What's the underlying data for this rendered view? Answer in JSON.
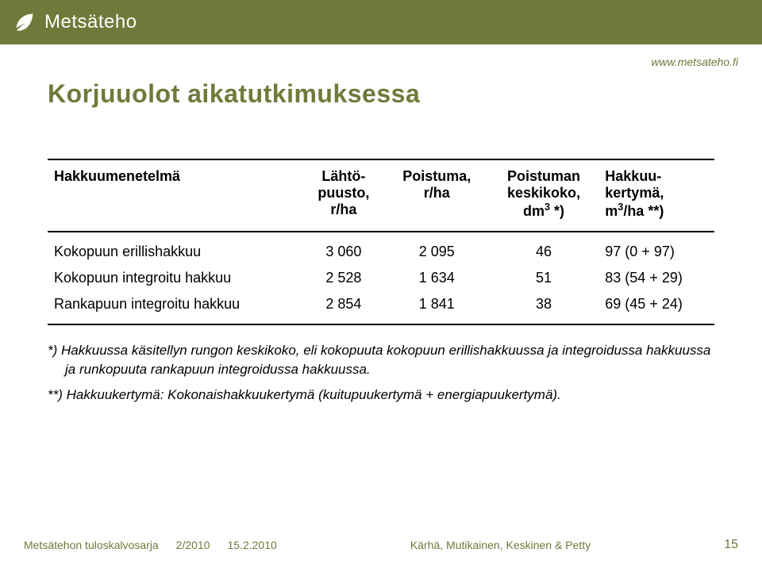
{
  "colors": {
    "brand": "#6f7a3a",
    "text": "#000000",
    "white": "#ffffff",
    "rule": "#000000"
  },
  "typography": {
    "title_fontsize": 32,
    "body_fontsize": 18,
    "footnote_fontsize": 17,
    "footer_fontsize": 14,
    "brand_fontsize": 24
  },
  "header": {
    "brand": "Metsäteho",
    "url": "www.metsateho.fi"
  },
  "title": "Korjuuolot aikatutkimuksessa",
  "table": {
    "columns": [
      {
        "label": "Hakkuumenetelmä",
        "align": "left",
        "width": "34%"
      },
      {
        "label": "Lähtö-\npuusto,\nr/ha",
        "align": "center",
        "width": "14%"
      },
      {
        "label": "Poistuma,\nr/ha",
        "align": "center",
        "width": "14%"
      },
      {
        "label": "Poistuman\nkeskikoko,\n",
        "sup_after": "dm",
        "sup": "3",
        "tail": " *)",
        "align": "center",
        "width": "18%"
      },
      {
        "label": "Hakkuu-\nkertymä,\n",
        "sup_after": "m",
        "sup": "3",
        "tail": "/ha **)",
        "align": "left",
        "width": "20%"
      }
    ],
    "rows": [
      [
        "Kokopuun erillishakkuu",
        "3 060",
        "2 095",
        "46",
        "97 (0   + 97)"
      ],
      [
        "Kokopuun integroitu hakkuu",
        "2 528",
        "1 634",
        "51",
        "83 (54 + 29)"
      ],
      [
        "Rankapuun integroitu hakkuu",
        "2 854",
        "1 841",
        "38",
        "69 (45 + 24)"
      ]
    ]
  },
  "footnotes": {
    "f1_marker": "*)",
    "f1_text": "Hakkuussa käsitellyn rungon keskikoko, eli kokopuuta kokopuun erillishakkuussa ja integroidussa hakkuussa ja runkopuuta rankapuun integroidussa hakkuussa.",
    "f2_marker": "**)",
    "f2_text": "Hakkuukertymä: Kokonaishakkuukertymä (kuitupuukertymä + energiapuukertymä)."
  },
  "footer": {
    "series": "Metsätehon tuloskalvosarja",
    "issue": "2/2010",
    "date": "15.2.2010",
    "authors": "Kärhä, Mutikainen, Keskinen & Petty",
    "page": "15"
  }
}
